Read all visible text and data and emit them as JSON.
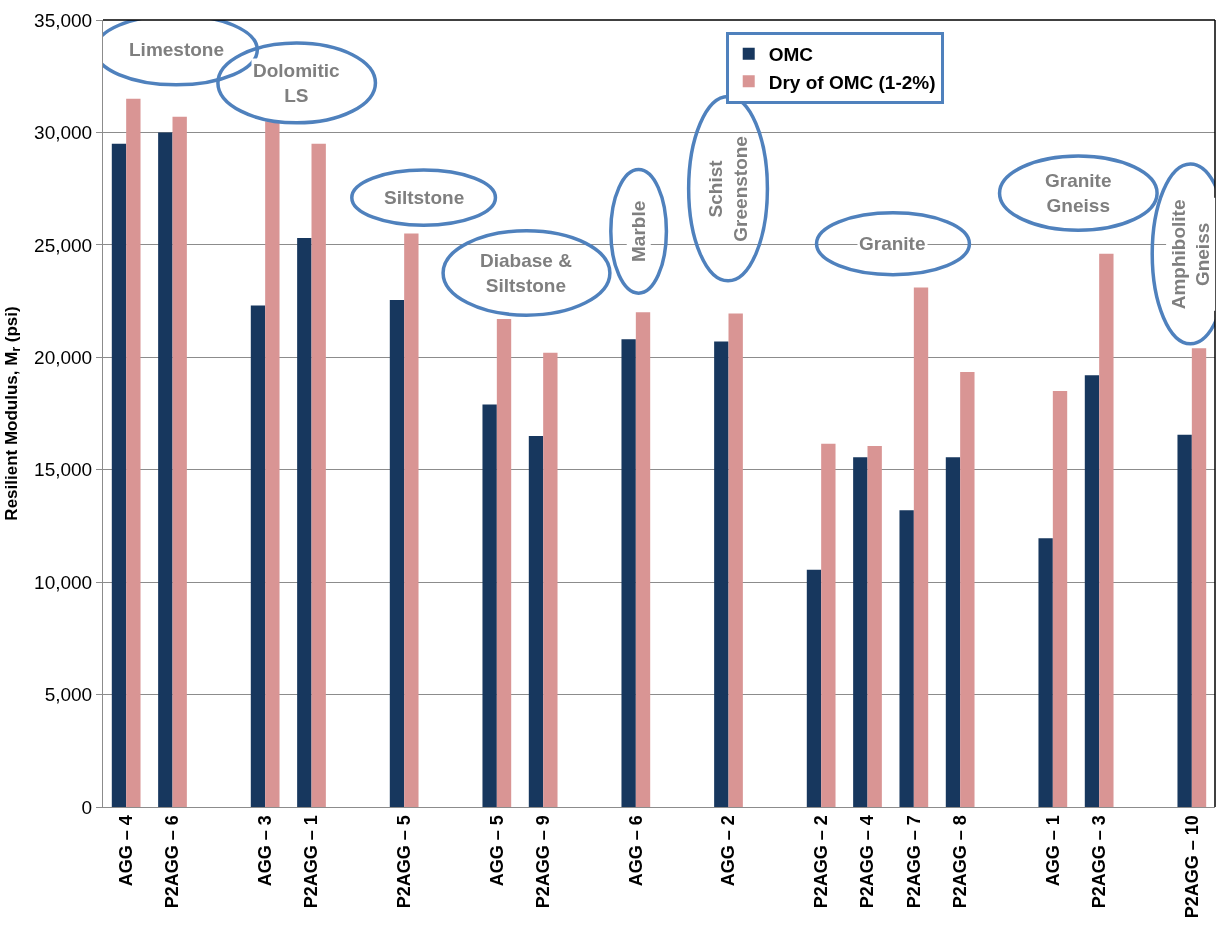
{
  "chart_data": {
    "type": "bar",
    "ylabel": "Resilient Modulus, M$_{r}$ (psi)",
    "categories": [
      "AGG – 4",
      "P2AGG – 6",
      null,
      "AGG – 3",
      "P2AGG – 1",
      null,
      "P2AGG – 5",
      null,
      "AGG – 5",
      "P2AGG – 9",
      null,
      "AGG – 6",
      null,
      "AGG – 2",
      null,
      "P2AGG – 2",
      "P2AGG – 4",
      "P2AGG – 7",
      "P2AGG – 8",
      null,
      "AGG – 1",
      "P2AGG – 3",
      null,
      "P2AGG – 10"
    ],
    "series": [
      {
        "name": "OMC",
        "color": "#17375e",
        "values": [
          29500,
          30000,
          null,
          22300,
          25300,
          null,
          22550,
          null,
          17900,
          16500,
          null,
          20800,
          null,
          20700,
          null,
          10550,
          15550,
          13200,
          15550,
          null,
          11950,
          19200,
          null,
          16550
        ]
      },
      {
        "name": "Dry of OMC (1-2%)",
        "color": "#d99594",
        "values": [
          31500,
          30700,
          null,
          30500,
          29500,
          null,
          25500,
          null,
          21700,
          20200,
          null,
          22000,
          null,
          21950,
          null,
          16150,
          16050,
          23100,
          19350,
          null,
          18500,
          24600,
          null,
          20400
        ]
      }
    ],
    "ylim": [
      0,
      35000
    ],
    "yticks": [
      0,
      {
        "value": 5000,
        "label": "5,000"
      },
      {
        "value": 10000,
        "label": "10,000"
      },
      {
        "value": 15000,
        "label": "15,000"
      },
      {
        "value": 20000,
        "label": "20,000"
      },
      {
        "value": 25000,
        "label": "25,000"
      },
      {
        "value": 30000,
        "label": "30,000"
      },
      {
        "value": 35000,
        "label": "35,000"
      }
    ],
    "grid": "y",
    "legend": "top right",
    "annotations": [
      "Limestone",
      "Dolomitic\nLS",
      "Siltstone",
      "Diabase &\nSiltstone",
      "Marble",
      "Schist\nGreenstone",
      "Granite",
      "Granite\nGneiss",
      "Amphibolite\nGneiss"
    ]
  }
}
